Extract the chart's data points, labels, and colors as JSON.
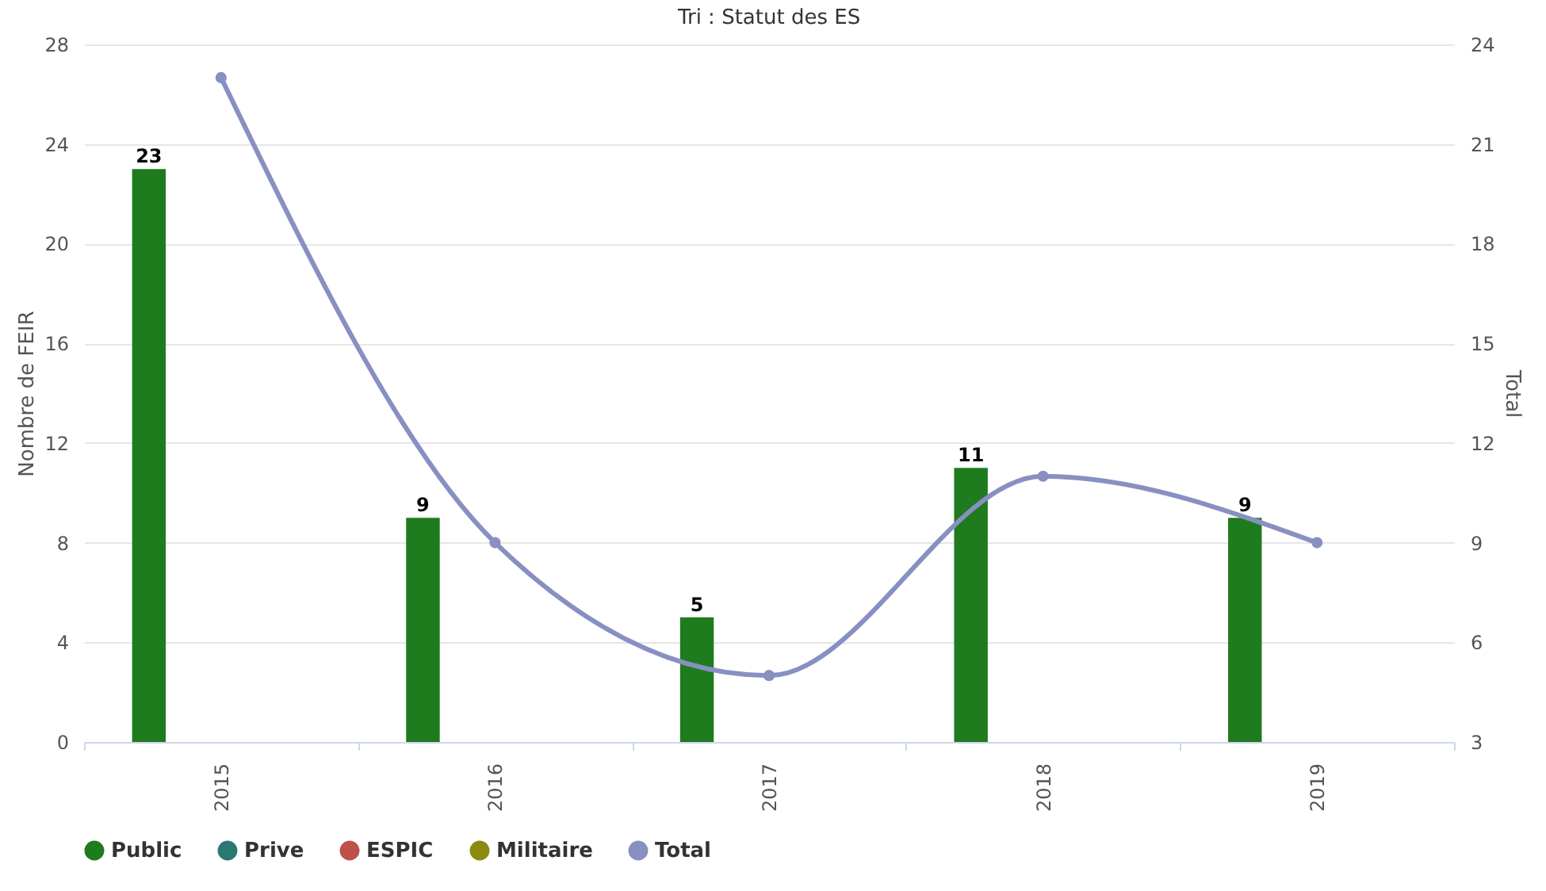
{
  "chart_data": {
    "type": "bar",
    "title": "Tri : Statut des ES",
    "ylabel": "Nombre de FEIR",
    "y2label": "Total",
    "categories": [
      "2015",
      "2016",
      "2017",
      "2018",
      "2019"
    ],
    "series": [
      {
        "name": "Public",
        "color": "#1e7b1e",
        "values": [
          23,
          9,
          5,
          11,
          9
        ],
        "value_labels": [
          "23",
          "9",
          "5",
          "11",
          "9"
        ]
      },
      {
        "name": "Prive",
        "color": "#2b7873",
        "values": [
          null,
          null,
          null,
          null,
          null
        ]
      },
      {
        "name": "ESPIC",
        "color": "#c0504d",
        "values": [
          null,
          null,
          null,
          null,
          null
        ]
      },
      {
        "name": "Militaire",
        "color": "#8a8a10",
        "values": [
          null,
          null,
          null,
          null,
          null
        ]
      },
      {
        "name": "Total",
        "type": "line",
        "axis": "y2",
        "color": "#8890c2",
        "values": [
          23,
          9,
          5,
          11,
          9
        ]
      }
    ],
    "ylim": [
      0,
      28
    ],
    "yticks": [
      0,
      4,
      8,
      12,
      16,
      20,
      24,
      28
    ],
    "y2lim": [
      3,
      24
    ],
    "y2ticks": [
      3,
      6,
      9,
      12,
      15,
      18,
      21,
      24
    ],
    "grid": "y",
    "legend": "bottom",
    "marker": "circle",
    "line_style": "solid"
  }
}
